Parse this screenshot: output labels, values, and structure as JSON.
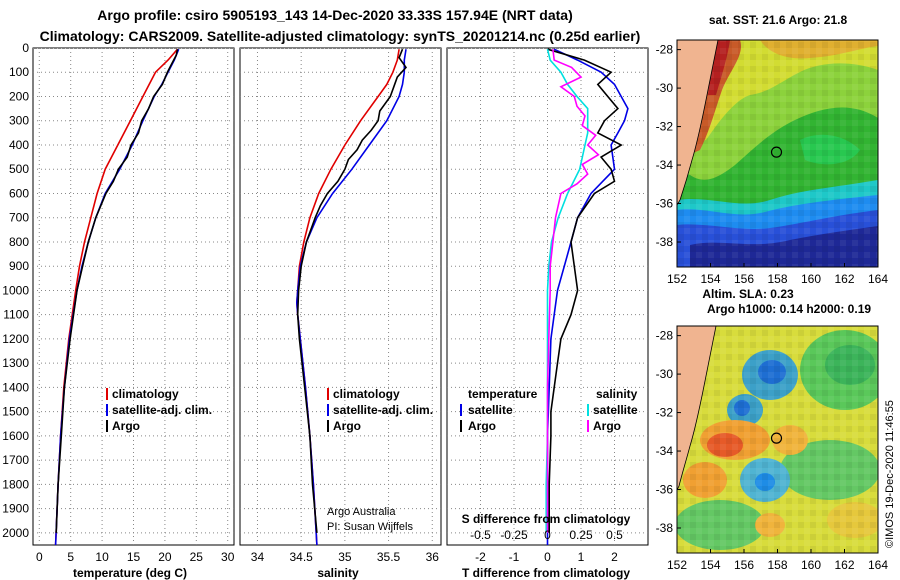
{
  "header": {
    "title_line1": "Argo profile: csiro 5905193_143 14-Dec-2020 33.33S 157.94E (NRT data)",
    "title_line2": "Climatology: CARS2009. Satellite-adjusted climatology: synTS_20201214.nc (0.25d earlier)"
  },
  "colors": {
    "climatology": "#e00000",
    "satellite": "#0000e6",
    "argo": "#000000",
    "sat_temp": "#00e0e0",
    "sat_sal": "#ff00ff"
  },
  "depth_axis": {
    "range": [
      0,
      2050
    ],
    "ticks": [
      "0",
      "100",
      "200",
      "300",
      "400",
      "500",
      "600",
      "700",
      "800",
      "900",
      "1000",
      "1100",
      "1200",
      "1300",
      "1400",
      "1500",
      "1600",
      "1700",
      "1800",
      "1900",
      "2000"
    ]
  },
  "chart_data": [
    {
      "id": "temperature",
      "type": "line",
      "xlabel": "temperature (deg C)",
      "xlim": [
        -1,
        31
      ],
      "ylim": [
        0,
        2050
      ],
      "xticks": [
        "0",
        "5",
        "10",
        "15",
        "20",
        "25",
        "30"
      ],
      "legend": [
        "climatology",
        "satellite-adj. clim.",
        "Argo"
      ],
      "series": [
        {
          "name": "climatology",
          "depth": [
            5,
            50,
            100,
            200,
            300,
            400,
            500,
            600,
            700,
            800,
            900,
            1000,
            1200,
            1400,
            1600,
            1800,
            2050
          ],
          "values": [
            22.0,
            20.5,
            18.5,
            16.5,
            14.5,
            12.5,
            10.5,
            9.2,
            8.2,
            7.2,
            6.4,
            5.8,
            4.7,
            3.9,
            3.4,
            3.0,
            2.6
          ]
        },
        {
          "name": "satellite-adj. clim.",
          "depth": [
            5,
            50,
            100,
            150,
            200,
            300,
            400,
            500,
            600,
            700,
            800,
            900,
            1000,
            1200,
            1400,
            1600,
            1800,
            2050
          ],
          "values": [
            22.2,
            21.5,
            20.5,
            19.5,
            18.3,
            16.5,
            14.8,
            12.8,
            10.5,
            9.0,
            7.8,
            6.8,
            6.0,
            4.8,
            4.0,
            3.4,
            3.0,
            2.6
          ]
        },
        {
          "name": "Argo",
          "depth": [
            5,
            30,
            60,
            100,
            150,
            200,
            250,
            300,
            350,
            400,
            450,
            500,
            550,
            600,
            700,
            800,
            900,
            1000,
            1200,
            1400,
            1600,
            1800,
            2000
          ],
          "values": [
            22.0,
            21.8,
            21.2,
            20.4,
            19.6,
            18.2,
            17.4,
            16.3,
            15.8,
            14.6,
            14.0,
            12.6,
            11.8,
            10.6,
            9.0,
            7.8,
            6.9,
            6.0,
            4.9,
            4.0,
            3.5,
            3.0,
            2.7
          ]
        }
      ]
    },
    {
      "id": "salinity",
      "type": "line",
      "xlabel": "salinity",
      "xlim": [
        33.8,
        36.1
      ],
      "ylim": [
        0,
        2050
      ],
      "xticks": [
        "34",
        "34.5",
        "35",
        "35.5",
        "36"
      ],
      "legend": [
        "climatology",
        "satellite-adj. clim.",
        "Argo"
      ],
      "series": [
        {
          "name": "climatology",
          "depth": [
            5,
            50,
            100,
            150,
            200,
            300,
            400,
            500,
            600,
            700,
            800,
            900,
            1000,
            1050,
            1100,
            1200,
            1400,
            1600,
            1800,
            2050
          ],
          "values": [
            35.62,
            35.6,
            35.55,
            35.48,
            35.38,
            35.18,
            35.0,
            34.84,
            34.7,
            34.6,
            34.53,
            34.48,
            34.46,
            34.45,
            34.46,
            34.49,
            34.55,
            34.6,
            34.64,
            34.68
          ]
        },
        {
          "name": "satellite-adj. clim.",
          "depth": [
            5,
            50,
            100,
            150,
            200,
            300,
            400,
            500,
            600,
            700,
            800,
            900,
            1000,
            1050,
            1100,
            1200,
            1400,
            1600,
            1800,
            2050
          ],
          "values": [
            35.7,
            35.68,
            35.68,
            35.66,
            35.62,
            35.48,
            35.28,
            35.08,
            34.86,
            34.68,
            34.56,
            34.49,
            34.46,
            34.45,
            34.46,
            34.49,
            34.55,
            34.6,
            34.64,
            34.68
          ]
        },
        {
          "name": "Argo",
          "depth": [
            5,
            40,
            80,
            120,
            160,
            200,
            260,
            300,
            340,
            380,
            420,
            460,
            500,
            550,
            600,
            650,
            700,
            800,
            900,
            1000,
            1100,
            1200,
            1400,
            1600,
            1800,
            2000
          ],
          "values": [
            35.66,
            35.62,
            35.7,
            35.6,
            35.56,
            35.52,
            35.4,
            35.38,
            35.3,
            35.2,
            35.14,
            35.04,
            35.0,
            34.92,
            34.8,
            34.72,
            34.66,
            34.56,
            34.5,
            34.47,
            34.46,
            34.48,
            34.54,
            34.6,
            34.63,
            34.68
          ]
        }
      ],
      "note_line1": "Argo Australia",
      "note_line2": "PI: Susan Wijffels"
    },
    {
      "id": "difference",
      "type": "line",
      "xlabel": "T difference from climatology",
      "xlim": [
        -3,
        3
      ],
      "ylim": [
        0,
        2050
      ],
      "xticks": [
        "-2",
        "-1",
        "0",
        "1",
        "2"
      ],
      "s_axis_label": "S difference from climatology",
      "s_xticks": [
        "-0.5",
        "-0.25",
        "0",
        "0.25",
        "0.5"
      ],
      "legend_temperature_heading": "temperature",
      "legend_salinity_heading": "salinity",
      "legend_temperature": [
        "satellite",
        "Argo"
      ],
      "legend_salinity": [
        "satellite",
        "Argo"
      ],
      "series": [
        {
          "name": "T satellite",
          "depth": [
            5,
            50,
            100,
            150,
            200,
            250,
            300,
            350,
            400,
            500,
            600,
            700,
            800,
            900,
            1000,
            1100,
            1200,
            1400,
            1600,
            1800,
            2050
          ],
          "values": [
            0.2,
            0.9,
            1.6,
            2.0,
            2.2,
            2.4,
            2.3,
            2.1,
            1.9,
            2.0,
            1.3,
            0.9,
            0.7,
            0.5,
            0.3,
            0.2,
            0.1,
            0.05,
            0.0,
            0.0,
            0.0
          ]
        },
        {
          "name": "T Argo",
          "depth": [
            5,
            50,
            100,
            150,
            200,
            250,
            300,
            350,
            400,
            450,
            500,
            550,
            600,
            700,
            800,
            900,
            1000,
            1100,
            1200,
            1300,
            1400,
            1500,
            1600,
            1800,
            2000
          ],
          "values": [
            0.0,
            1.1,
            1.9,
            1.5,
            1.8,
            2.1,
            1.7,
            1.5,
            2.2,
            1.6,
            1.9,
            2.0,
            1.4,
            0.9,
            0.7,
            0.8,
            0.9,
            0.7,
            0.4,
            0.3,
            0.2,
            0.1,
            0.1,
            0.05,
            0.05
          ]
        },
        {
          "name": "S satellite",
          "depth": [
            5,
            50,
            100,
            150,
            200,
            250,
            300,
            350,
            400,
            500,
            600,
            700,
            800,
            900,
            1000,
            1200,
            1400,
            1600,
            1800,
            2000
          ],
          "values": [
            0.0,
            0.02,
            0.1,
            0.15,
            0.22,
            0.3,
            0.3,
            0.3,
            0.28,
            0.24,
            0.15,
            0.08,
            0.03,
            0.01,
            0.0,
            0.0,
            0.0,
            0.0,
            -0.01,
            -0.01
          ]
        },
        {
          "name": "S Argo",
          "depth": [
            5,
            50,
            80,
            120,
            160,
            200,
            240,
            280,
            320,
            360,
            400,
            440,
            480,
            520,
            560,
            600,
            700,
            800,
            900,
            1000,
            1200,
            1400,
            1600,
            1800,
            2000
          ],
          "values": [
            0.04,
            0.05,
            0.18,
            0.25,
            0.1,
            0.2,
            0.22,
            0.28,
            0.26,
            0.36,
            0.3,
            0.38,
            0.26,
            0.3,
            0.22,
            0.1,
            0.06,
            0.04,
            0.02,
            0.02,
            0.01,
            0.0,
            0.0,
            0.0,
            0.0
          ]
        }
      ]
    }
  ],
  "maps": {
    "sst": {
      "title": "sat. SST: 21.6 Argo: 21.8",
      "lat_ticks": [
        "-28",
        "-30",
        "-32",
        "-34",
        "-36",
        "-38"
      ],
      "lon_ticks": [
        "152",
        "154",
        "156",
        "158",
        "160",
        "162",
        "164"
      ],
      "lat_range": [
        -39.3,
        -27.5
      ],
      "lon_range": [
        152,
        164
      ],
      "float_lat": -33.33,
      "float_lon": 157.94
    },
    "sla": {
      "title_line1": "Altim. SLA: 0.23",
      "title_line2": "Argo h1000: 0.14 h2000: 0.19",
      "lat_ticks": [
        "-28",
        "-30",
        "-32",
        "-34",
        "-36",
        "-38"
      ],
      "lon_ticks": [
        "152",
        "154",
        "156",
        "158",
        "160",
        "162",
        "164"
      ],
      "lat_range": [
        -39.3,
        -27.5
      ],
      "lon_range": [
        152,
        164
      ],
      "float_lat": -33.33,
      "float_lon": 157.94
    }
  },
  "credit": "©IMOS 19-Dec-2020 11:46:55"
}
